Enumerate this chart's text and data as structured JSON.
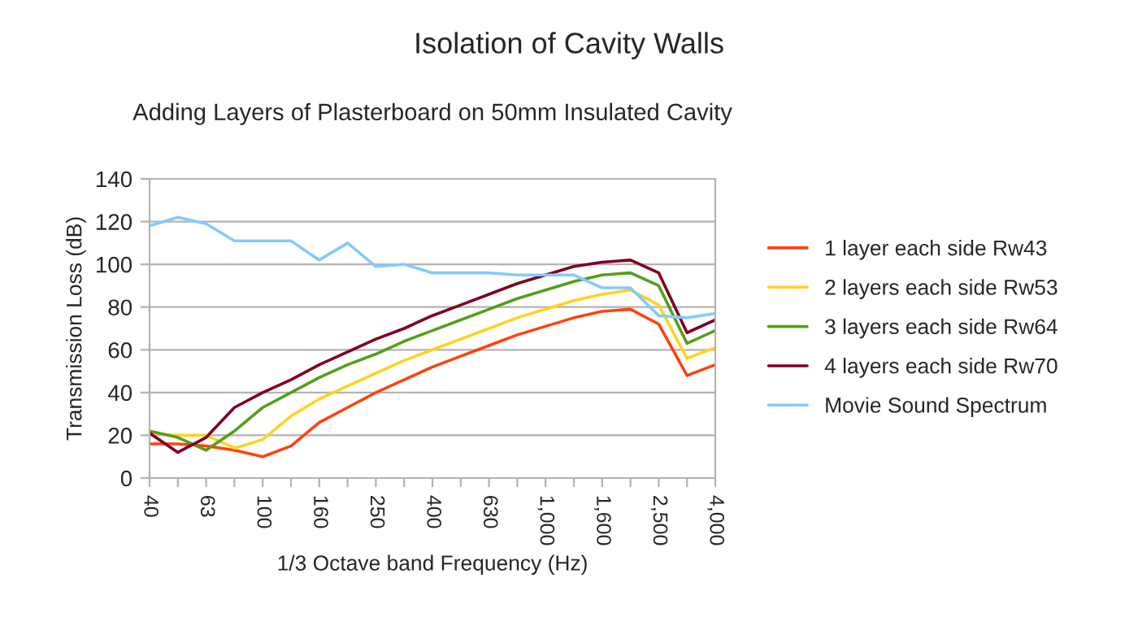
{
  "chart_data": {
    "type": "line",
    "title": "Isolation of Cavity Walls",
    "subtitle": "Adding Layers of Plasterboard on 50mm Insulated Cavity",
    "xlabel": "1/3 Octave band Frequency (Hz)",
    "ylabel": "Transmission Loss (dB)",
    "categories": [
      "40",
      null,
      "63",
      null,
      "100",
      null,
      "160",
      null,
      "250",
      null,
      "400",
      null,
      "630",
      null,
      "1,000",
      null,
      "1,600",
      null,
      "2,500",
      null,
      "4,000"
    ],
    "series": [
      {
        "name": "1 layer each side Rw43",
        "color": "#ff420e",
        "values": [
          16,
          16,
          15,
          13,
          10,
          15,
          26,
          33,
          40,
          46,
          52,
          57,
          62,
          67,
          71,
          75,
          78,
          79,
          72,
          48,
          53
        ]
      },
      {
        "name": "2 layers each side Rw53",
        "color": "#ffd320",
        "values": [
          21,
          20,
          20,
          14,
          18,
          29,
          37,
          43,
          49,
          55,
          60,
          65,
          70,
          75,
          79,
          83,
          86,
          88,
          81,
          56,
          61
        ]
      },
      {
        "name": "3 layers each side Rw64",
        "color": "#579d1c",
        "values": [
          22,
          19,
          13,
          22,
          33,
          40,
          47,
          53,
          58,
          64,
          69,
          74,
          79,
          84,
          88,
          92,
          95,
          96,
          90,
          63,
          69
        ]
      },
      {
        "name": "4 layers each side Rw70",
        "color": "#7e0021",
        "values": [
          21,
          12,
          19,
          33,
          40,
          46,
          53,
          59,
          65,
          70,
          76,
          81,
          86,
          91,
          95,
          99,
          101,
          102,
          96,
          68,
          74
        ]
      },
      {
        "name": "Movie Sound Spectrum",
        "color": "#83caff",
        "values": [
          118,
          122,
          119,
          111,
          111,
          111,
          102,
          110,
          99,
          100,
          96,
          96,
          96,
          95,
          95,
          95,
          89,
          89,
          76,
          75,
          77
        ]
      }
    ],
    "ylim": [
      0,
      140
    ],
    "yticks": [
      0,
      20,
      40,
      60,
      80,
      100,
      120,
      140
    ],
    "grid": "y",
    "legend": "right",
    "marker": "none",
    "line_style": "solid"
  }
}
